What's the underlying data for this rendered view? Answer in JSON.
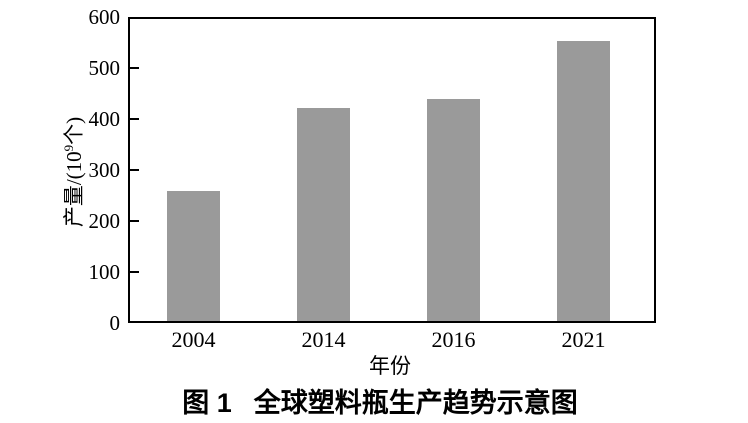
{
  "figure": {
    "caption": {
      "figure_label": "图 1",
      "title": "全球塑料瓶生产趋势示意图"
    }
  },
  "chart_data": {
    "type": "bar",
    "title": "图1 全球塑料瓶生产趋势示意图",
    "categories": [
      "2004",
      "2014",
      "2016",
      "2021"
    ],
    "values": [
      258,
      422,
      440,
      553
    ],
    "xlabel": "年份",
    "ylabel": "产量/(10^9个)",
    "ylabel_parts": {
      "prefix": "产量/(10",
      "superscript": "9",
      "suffix": "个)"
    },
    "ylim": [
      0,
      600
    ],
    "yticks": [
      0,
      100,
      200,
      300,
      400,
      500,
      600
    ],
    "grid": false,
    "legend_position": "none",
    "bar_color": "#9a9a9a",
    "axis_color": "#000000",
    "text_color": "#000000"
  }
}
